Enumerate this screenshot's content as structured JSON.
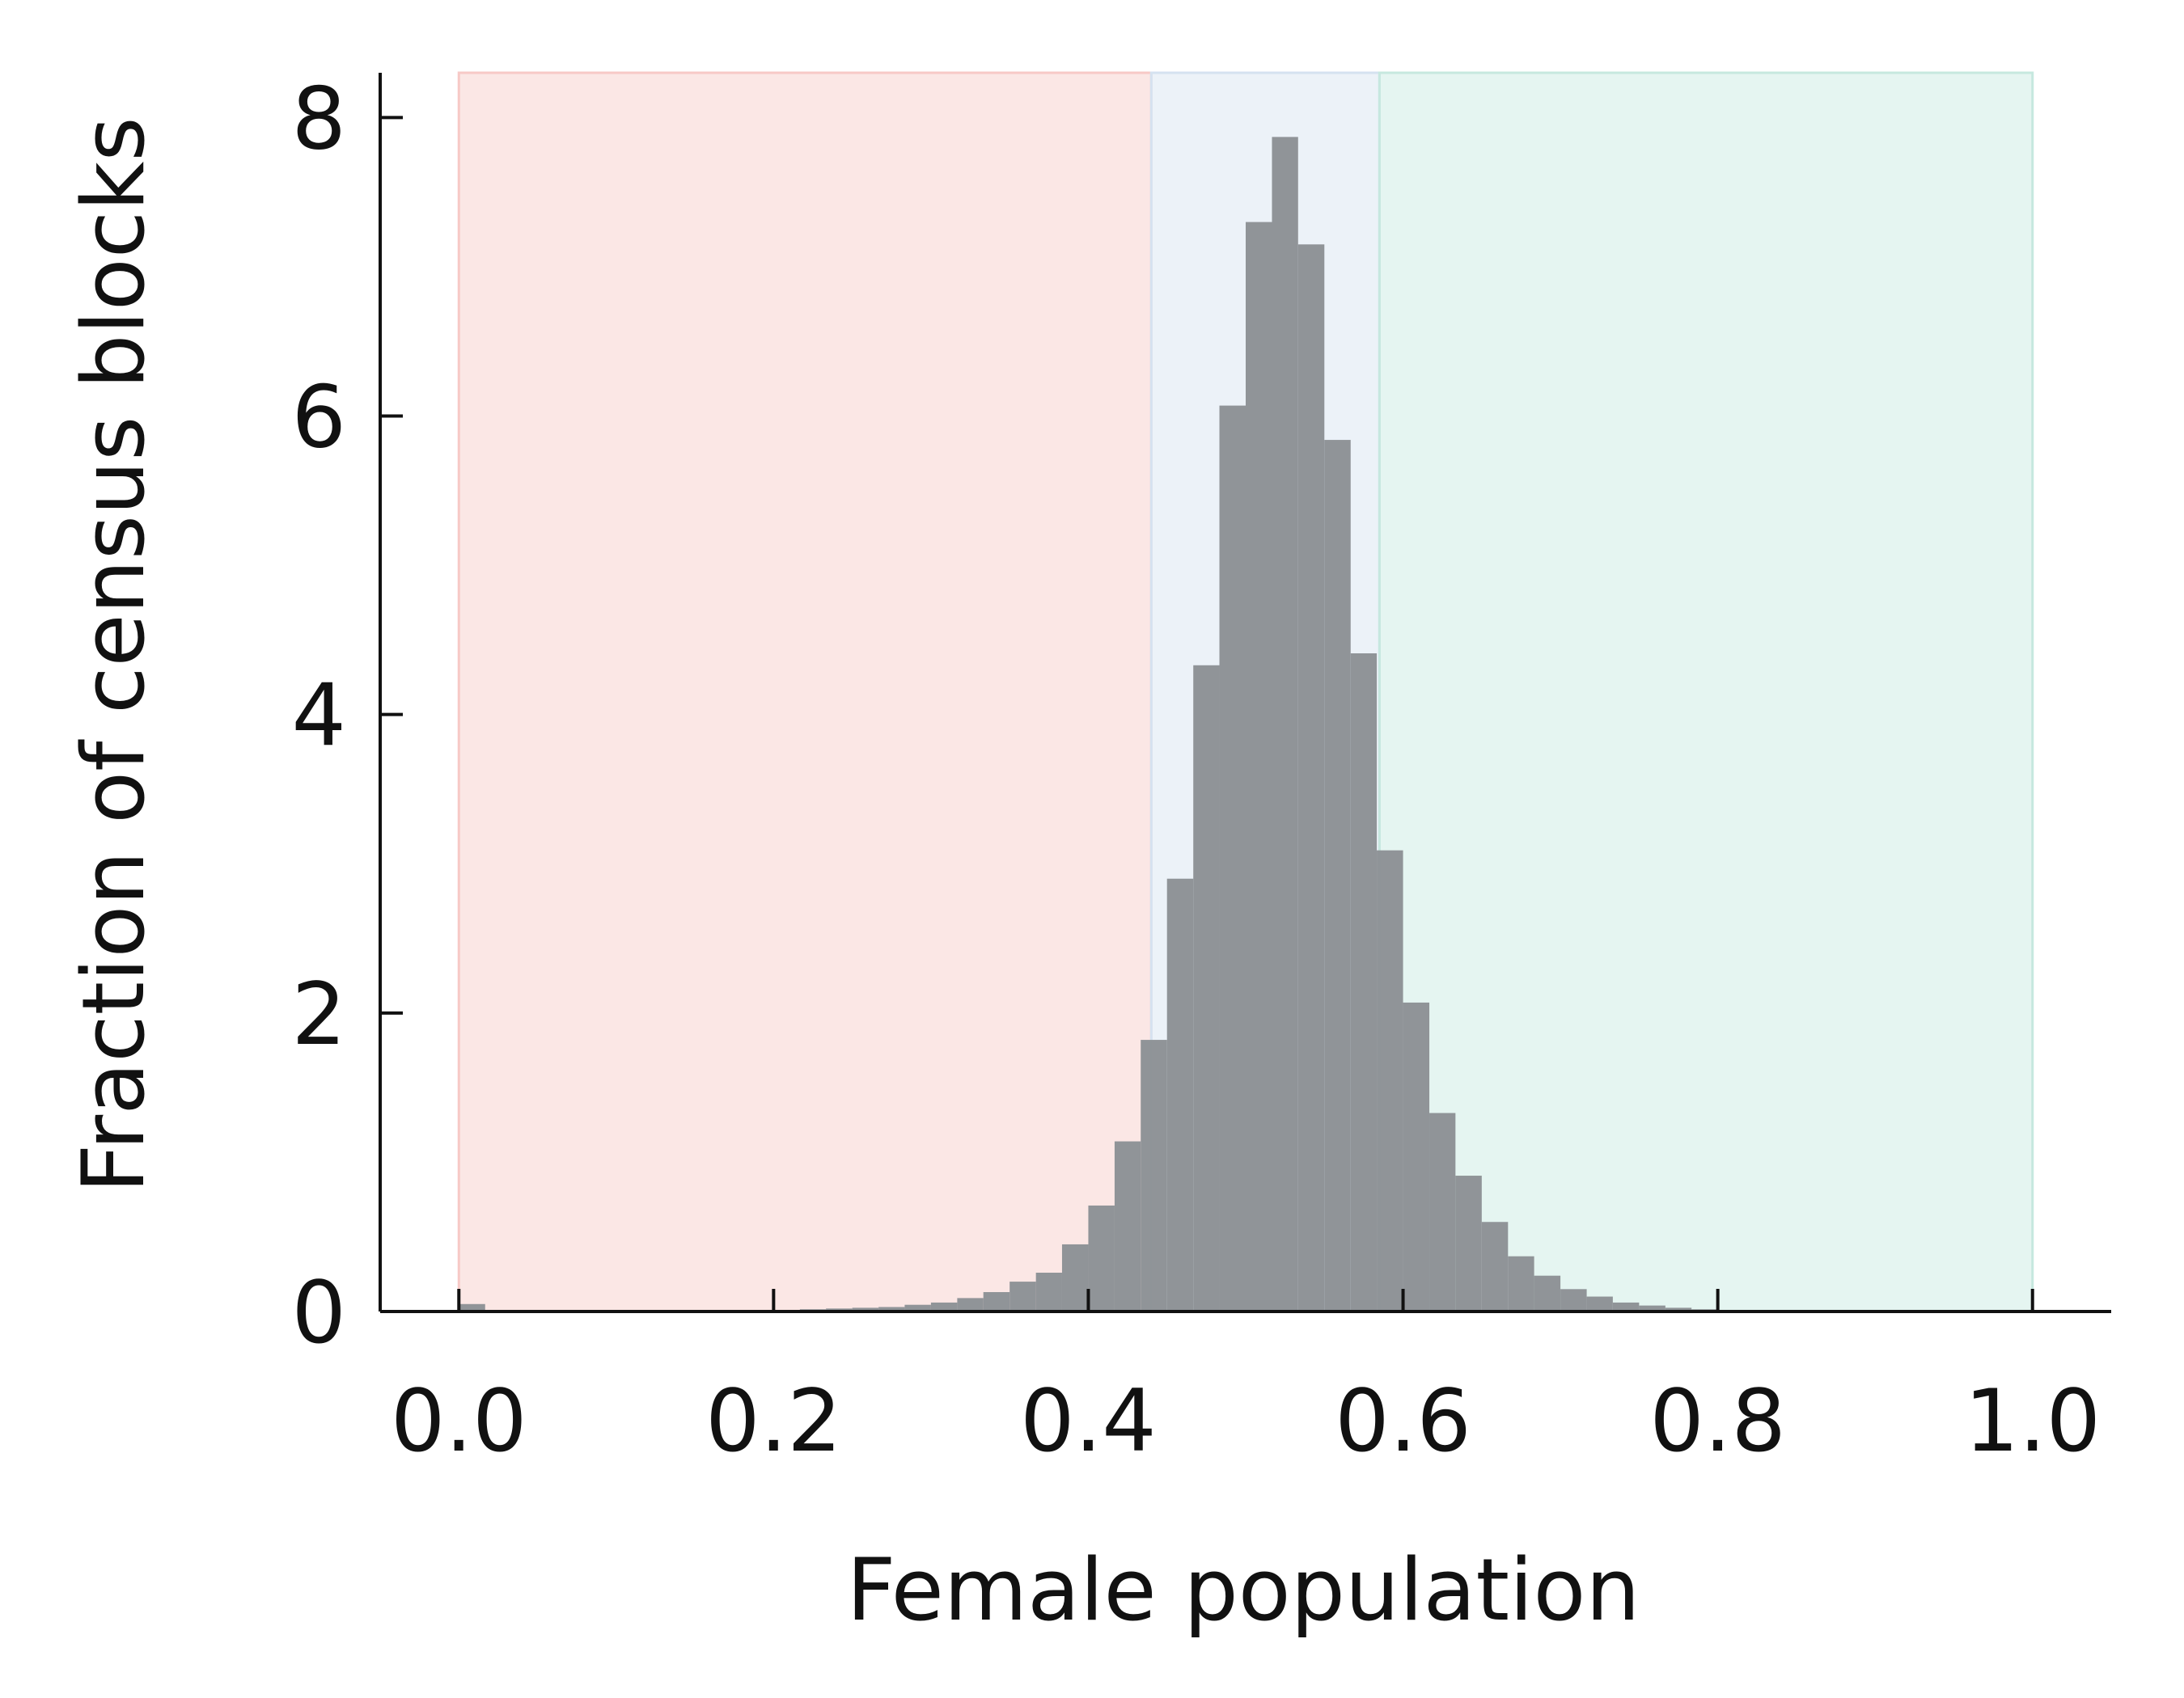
{
  "chart_data": {
    "type": "bar",
    "title": "",
    "xlabel": "Female population",
    "ylabel": "Fraction of census blocks",
    "xlim": [
      -0.05,
      1.05
    ],
    "ylim": [
      0,
      8.3
    ],
    "xticks": [
      0.0,
      0.2,
      0.4,
      0.6,
      0.8,
      1.0
    ],
    "xtick_labels": [
      "0.0",
      "0.2",
      "0.4",
      "0.6",
      "0.8",
      "1.0"
    ],
    "yticks": [
      0,
      2,
      4,
      6,
      8
    ],
    "ytick_labels": [
      "0",
      "2",
      "4",
      "6",
      "8"
    ],
    "grid": false,
    "bin_width": 0.01667,
    "bins": [
      {
        "x0": 0.0,
        "x1": 0.0167,
        "value": 0.05
      },
      {
        "x0": 0.1833,
        "x1": 0.2,
        "value": 0.01
      },
      {
        "x0": 0.2,
        "x1": 0.2167,
        "value": 0.01
      },
      {
        "x0": 0.2167,
        "x1": 0.2333,
        "value": 0.015
      },
      {
        "x0": 0.2333,
        "x1": 0.25,
        "value": 0.02
      },
      {
        "x0": 0.25,
        "x1": 0.2667,
        "value": 0.025
      },
      {
        "x0": 0.2667,
        "x1": 0.2833,
        "value": 0.03
      },
      {
        "x0": 0.2833,
        "x1": 0.3,
        "value": 0.045
      },
      {
        "x0": 0.3,
        "x1": 0.3167,
        "value": 0.06
      },
      {
        "x0": 0.3167,
        "x1": 0.3333,
        "value": 0.09
      },
      {
        "x0": 0.3333,
        "x1": 0.35,
        "value": 0.13
      },
      {
        "x0": 0.35,
        "x1": 0.3667,
        "value": 0.2
      },
      {
        "x0": 0.3667,
        "x1": 0.3833,
        "value": 0.26
      },
      {
        "x0": 0.3833,
        "x1": 0.4,
        "value": 0.45
      },
      {
        "x0": 0.4,
        "x1": 0.4167,
        "value": 0.71
      },
      {
        "x0": 0.4167,
        "x1": 0.4333,
        "value": 1.14
      },
      {
        "x0": 0.4333,
        "x1": 0.45,
        "value": 1.82
      },
      {
        "x0": 0.45,
        "x1": 0.4667,
        "value": 2.9
      },
      {
        "x0": 0.4667,
        "x1": 0.4833,
        "value": 4.33
      },
      {
        "x0": 0.4833,
        "x1": 0.5,
        "value": 6.07
      },
      {
        "x0": 0.5,
        "x1": 0.5167,
        "value": 7.3
      },
      {
        "x0": 0.5167,
        "x1": 0.5333,
        "value": 7.87
      },
      {
        "x0": 0.5333,
        "x1": 0.55,
        "value": 7.15
      },
      {
        "x0": 0.55,
        "x1": 0.5667,
        "value": 5.84
      },
      {
        "x0": 0.5667,
        "x1": 0.5833,
        "value": 4.41
      },
      {
        "x0": 0.5833,
        "x1": 0.6,
        "value": 3.09
      },
      {
        "x0": 0.6,
        "x1": 0.6167,
        "value": 2.07
      },
      {
        "x0": 0.6167,
        "x1": 0.6333,
        "value": 1.33
      },
      {
        "x0": 0.6333,
        "x1": 0.65,
        "value": 0.91
      },
      {
        "x0": 0.65,
        "x1": 0.6667,
        "value": 0.6
      },
      {
        "x0": 0.6667,
        "x1": 0.6833,
        "value": 0.37
      },
      {
        "x0": 0.6833,
        "x1": 0.7,
        "value": 0.24
      },
      {
        "x0": 0.7,
        "x1": 0.7167,
        "value": 0.15
      },
      {
        "x0": 0.7167,
        "x1": 0.7333,
        "value": 0.1
      },
      {
        "x0": 0.7333,
        "x1": 0.75,
        "value": 0.06
      },
      {
        "x0": 0.75,
        "x1": 0.7667,
        "value": 0.04
      },
      {
        "x0": 0.7667,
        "x1": 0.7833,
        "value": 0.025
      },
      {
        "x0": 0.7833,
        "x1": 0.8,
        "value": 0.015
      },
      {
        "x0": 0.8,
        "x1": 0.8167,
        "value": 0.01
      }
    ],
    "regions": [
      {
        "x0": 0.0,
        "x1": 0.44,
        "color": "#f7c9c6"
      },
      {
        "x0": 0.44,
        "x1": 0.585,
        "color": "#d5e2f0"
      },
      {
        "x0": 0.585,
        "x1": 1.0,
        "color": "#c6e8df"
      }
    ],
    "colors": {
      "bar": "#8e9296",
      "region_opacity": 0.45
    }
  }
}
